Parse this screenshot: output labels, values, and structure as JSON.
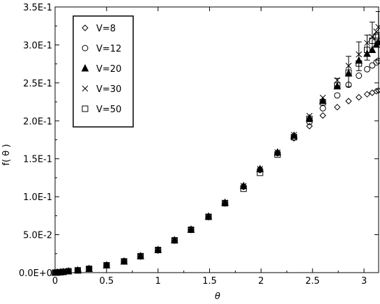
{
  "chart_data": {
    "type": "scatter",
    "title": "",
    "xlabel": "θ",
    "ylabel": "f( θ )",
    "xlim": [
      0,
      3.1416
    ],
    "ylim": [
      0,
      0.35
    ],
    "x_ticks": [
      0,
      0.5,
      1,
      1.5,
      2,
      2.5,
      3
    ],
    "x_tick_labels": [
      "0",
      "0.5",
      "1",
      "1.5",
      "2",
      "2.5",
      "3"
    ],
    "y_ticks": [
      0,
      0.05,
      0.1,
      0.15,
      0.2,
      0.25,
      0.3,
      0.35
    ],
    "y_tick_labels": [
      "0.0E+0",
      "5.0E-2",
      "1.0E-1",
      "1.5E-1",
      "2.0E-1",
      "2.5E-1",
      "3.0E-1",
      "3.5E-1"
    ],
    "grid": false,
    "legend_position": "top-left",
    "series": [
      {
        "name": "V=8",
        "marker": "diamond",
        "x": [
          0.0,
          0.02,
          0.05,
          0.08,
          0.13,
          0.22,
          0.33,
          0.5,
          0.67,
          0.83,
          1.0,
          1.16,
          1.32,
          1.49,
          1.65,
          1.83,
          1.99,
          2.16,
          2.32,
          2.47,
          2.6,
          2.74,
          2.85,
          2.95,
          3.03,
          3.08,
          3.12,
          3.14
        ],
        "y": [
          0.0,
          0.0002,
          0.0005,
          0.001,
          0.0018,
          0.003,
          0.005,
          0.0095,
          0.0145,
          0.021,
          0.029,
          0.042,
          0.056,
          0.073,
          0.091,
          0.113,
          0.135,
          0.157,
          0.177,
          0.193,
          0.207,
          0.218,
          0.226,
          0.231,
          0.235,
          0.237,
          0.239,
          0.24
        ]
      },
      {
        "name": "V=12",
        "marker": "circle",
        "x": [
          0.0,
          0.02,
          0.05,
          0.08,
          0.13,
          0.22,
          0.33,
          0.5,
          0.67,
          0.83,
          1.0,
          1.16,
          1.32,
          1.49,
          1.65,
          1.83,
          1.99,
          2.16,
          2.32,
          2.47,
          2.6,
          2.74,
          2.85,
          2.95,
          3.03,
          3.08,
          3.12,
          3.14
        ],
        "y": [
          0.0,
          0.0002,
          0.0005,
          0.001,
          0.0018,
          0.003,
          0.005,
          0.0097,
          0.0148,
          0.0215,
          0.0298,
          0.0425,
          0.0565,
          0.0735,
          0.0915,
          0.1135,
          0.1355,
          0.1575,
          0.1785,
          0.1985,
          0.2165,
          0.2335,
          0.2475,
          0.2595,
          0.268,
          0.273,
          0.277,
          0.279
        ]
      },
      {
        "name": "V=20",
        "marker": "triangle",
        "x": [
          0.0,
          0.02,
          0.05,
          0.08,
          0.13,
          0.22,
          0.33,
          0.5,
          0.67,
          0.83,
          1.0,
          1.16,
          1.32,
          1.49,
          1.65,
          1.83,
          1.99,
          2.16,
          2.32,
          2.47,
          2.6,
          2.74,
          2.85,
          2.95,
          3.03,
          3.08,
          3.12,
          3.14
        ],
        "y": [
          0.0,
          0.0002,
          0.0005,
          0.001,
          0.0018,
          0.003,
          0.005,
          0.0097,
          0.0148,
          0.0217,
          0.03,
          0.0428,
          0.0568,
          0.074,
          0.0922,
          0.1142,
          0.1365,
          0.1585,
          0.1805,
          0.2035,
          0.2265,
          0.2455,
          0.2625,
          0.2795,
          0.2885,
          0.2935,
          0.3005,
          0.3035
        ]
      },
      {
        "name": "V=30",
        "marker": "cross",
        "x": [
          0.0,
          0.02,
          0.05,
          0.08,
          0.13,
          0.22,
          0.33,
          0.5,
          0.67,
          0.83,
          1.0,
          1.16,
          1.32,
          1.49,
          1.65,
          1.83,
          1.99,
          2.16,
          2.32,
          2.47,
          2.6,
          2.74,
          2.85,
          2.95,
          3.03,
          3.08,
          3.12,
          3.14
        ],
        "y": [
          0.0,
          0.0002,
          0.0005,
          0.001,
          0.0018,
          0.003,
          0.005,
          0.0097,
          0.0148,
          0.0217,
          0.03,
          0.0428,
          0.0568,
          0.074,
          0.0922,
          0.1142,
          0.1365,
          0.1585,
          0.1815,
          0.2065,
          0.2305,
          0.2535,
          0.2725,
          0.2875,
          0.3025,
          0.3105,
          0.3175,
          0.3235
        ]
      },
      {
        "name": "V=50",
        "marker": "square",
        "x": [
          0.0,
          0.02,
          0.05,
          0.08,
          0.13,
          0.22,
          0.33,
          0.5,
          0.67,
          0.83,
          1.0,
          1.16,
          1.32,
          1.49,
          1.65,
          1.83,
          1.99,
          2.16,
          2.32,
          2.47,
          2.6,
          2.74,
          2.85,
          2.95,
          3.03,
          3.08,
          3.12,
          3.14
        ],
        "y": [
          0.0,
          0.0002,
          0.0005,
          0.001,
          0.0018,
          0.003,
          0.005,
          0.0097,
          0.0148,
          0.0217,
          0.0298,
          0.0425,
          0.0565,
          0.0735,
          0.0915,
          0.1105,
          0.1315,
          0.1555,
          0.1785,
          0.2025,
          0.2245,
          0.2465,
          0.2635,
          0.2755,
          0.2935,
          0.3055,
          0.3105,
          0.3125
        ]
      }
    ],
    "error_bars": [
      {
        "x": 2.74,
        "y": 0.251,
        "low": 0.246,
        "high": 0.256
      },
      {
        "x": 2.85,
        "y": 0.265,
        "low": 0.245,
        "high": 0.285
      },
      {
        "x": 2.95,
        "y": 0.285,
        "low": 0.266,
        "high": 0.304
      },
      {
        "x": 3.03,
        "y": 0.295,
        "low": 0.28,
        "high": 0.313
      },
      {
        "x": 3.08,
        "y": 0.3,
        "low": 0.29,
        "high": 0.33
      },
      {
        "x": 3.14,
        "y": 0.318,
        "low": 0.28,
        "high": 0.344
      }
    ]
  }
}
